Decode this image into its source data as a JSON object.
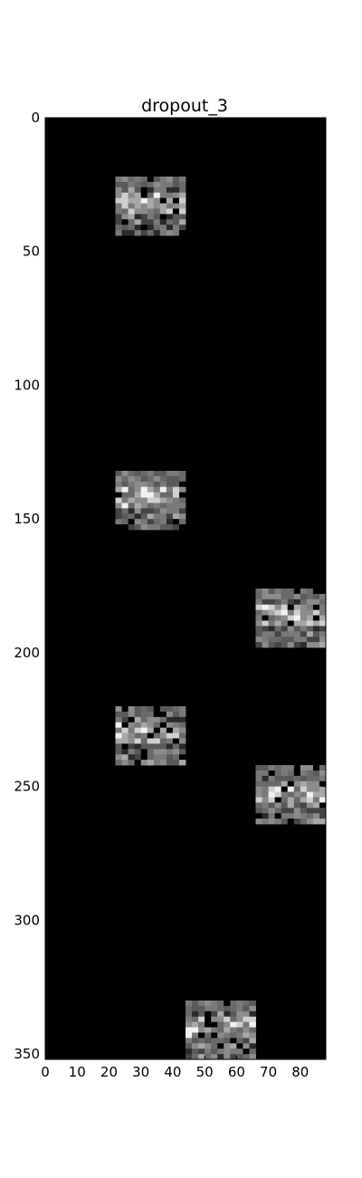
{
  "chart_data": {
    "type": "heatmap",
    "title": "dropout_3",
    "xlabel": "",
    "ylabel": "",
    "x_range": [
      0,
      88
    ],
    "y_range": [
      0,
      352
    ],
    "y_inverted": true,
    "grid": false,
    "legend": "none",
    "x_ticks": [
      "0",
      "10",
      "20",
      "30",
      "40",
      "50",
      "60",
      "70",
      "80"
    ],
    "y_ticks": [
      "0",
      "50",
      "100",
      "150",
      "200",
      "250",
      "300",
      "350"
    ],
    "colormap": "gray",
    "background_color": "#000000",
    "tile_size": [
      22,
      22
    ],
    "active_tiles": [
      {
        "x": 22,
        "y": 22
      },
      {
        "x": 22,
        "y": 132
      },
      {
        "x": 66,
        "y": 176
      },
      {
        "x": 22,
        "y": 220
      },
      {
        "x": 66,
        "y": 242
      },
      {
        "x": 44,
        "y": 330
      }
    ]
  }
}
